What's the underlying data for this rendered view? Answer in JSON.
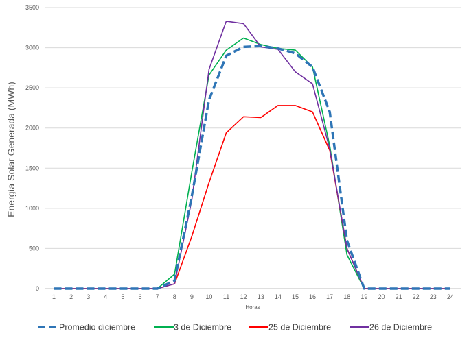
{
  "chart_data": {
    "type": "line",
    "title": "",
    "xlabel": "Horas",
    "ylabel": "Energía Solar Generada (MWh)",
    "x": [
      1,
      2,
      3,
      4,
      5,
      6,
      7,
      8,
      9,
      10,
      11,
      12,
      13,
      14,
      15,
      16,
      17,
      18,
      19,
      20,
      21,
      22,
      23,
      24
    ],
    "ylim": [
      0,
      3500
    ],
    "yticks": [
      0,
      500,
      1000,
      1500,
      2000,
      2500,
      3000,
      3500
    ],
    "grid": true,
    "legend_position": "bottom",
    "series": [
      {
        "name": "Promedio diciembre",
        "color": "#2E75B6",
        "dashed": true,
        "values": [
          0,
          0,
          0,
          0,
          0,
          0,
          0,
          100,
          1150,
          2350,
          2900,
          3010,
          3020,
          2990,
          2930,
          2760,
          2200,
          600,
          0,
          0,
          0,
          0,
          0,
          0
        ]
      },
      {
        "name": "3 de Diciembre",
        "color": "#00B050",
        "dashed": false,
        "values": [
          0,
          0,
          0,
          0,
          0,
          0,
          0,
          180,
          1450,
          2660,
          2970,
          3120,
          3040,
          2990,
          2970,
          2760,
          1780,
          420,
          0,
          0,
          0,
          0,
          0,
          0
        ]
      },
      {
        "name": "25 de Diciembre",
        "color": "#FF0000",
        "dashed": false,
        "values": [
          0,
          0,
          0,
          0,
          0,
          0,
          0,
          60,
          650,
          1320,
          1940,
          2140,
          2130,
          2280,
          2280,
          2200,
          1720,
          500,
          0,
          0,
          0,
          0,
          0,
          0
        ]
      },
      {
        "name": "26 de Diciembre",
        "color": "#7030A0",
        "dashed": false,
        "values": [
          0,
          0,
          0,
          0,
          0,
          0,
          0,
          60,
          1100,
          2730,
          3330,
          3300,
          3010,
          2980,
          2700,
          2550,
          1740,
          500,
          0,
          0,
          0,
          0,
          0,
          0
        ]
      }
    ]
  }
}
